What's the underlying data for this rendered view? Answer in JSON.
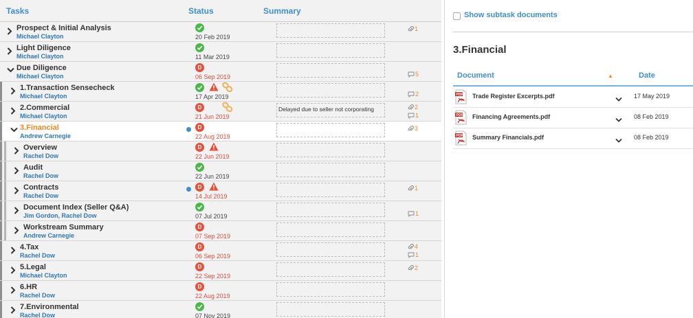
{
  "columns": {
    "tasks": "Tasks",
    "status": "Status",
    "summary": "Summary"
  },
  "colors": {
    "accent": "#3d8fd1",
    "owner": "#2f78b8",
    "orange": "#f08a24",
    "ok": "#4cb84c",
    "due": "#e8503a"
  },
  "tasks": [
    {
      "title": "Prospect & Initial Analysis",
      "owner": "Michael Clayton",
      "status_icon": "check",
      "date": "20 Feb 2019",
      "date_red": false,
      "summary": "",
      "attachments": "1",
      "comments": ""
    },
    {
      "title": "Light Diligence",
      "owner": "Michael Clayton",
      "status_icon": "check",
      "date": "11 Mar 2019",
      "date_red": false,
      "summary": "",
      "attachments": "",
      "comments": ""
    },
    {
      "title": "Due Diligence",
      "owner": "Michael Clayton",
      "status_icon": "due",
      "date": "06 Sep 2019",
      "date_red": true,
      "summary": "",
      "attachments": "",
      "comments": "5",
      "expanded": true
    },
    {
      "title": "1.Transaction Sensecheck",
      "owner": "Michael Clayton",
      "status_icon": "check",
      "warning": true,
      "linked": true,
      "date": "17 Apr 2019",
      "date_red": false,
      "summary": "",
      "attachments": "",
      "comments": "2"
    },
    {
      "title": "2.Commercial",
      "owner": "Michael Clayton",
      "status_icon": "due",
      "linked": true,
      "date": "21 Jun 2019",
      "date_red": true,
      "summary": "Delayed due to seller not corporating",
      "attachments": "2",
      "comments": "1"
    },
    {
      "title": "3.Financial",
      "owner": "Andrew Carnegie",
      "status_icon": "due",
      "date": "22 Aug 2019",
      "date_red": true,
      "summary": "",
      "attachments": "3",
      "comments": "",
      "selected": true,
      "expanded": true,
      "dot": true
    },
    {
      "title": "Overview",
      "owner": "Rachel Dow",
      "status_icon": "due",
      "warning": true,
      "date": "22 Jun 2019",
      "date_red": true,
      "summary": "",
      "attachments": "",
      "comments": ""
    },
    {
      "title": "Audit",
      "owner": "Rachel Dow",
      "status_icon": "check",
      "date": "22 Jun 2019",
      "date_red": false,
      "summary": "",
      "attachments": "",
      "comments": ""
    },
    {
      "title": "Contracts",
      "owner": "Rachel Dow",
      "status_icon": "due",
      "warning": true,
      "date": "14 Jul 2019",
      "date_red": true,
      "summary": "",
      "attachments": "1",
      "comments": "",
      "dot": true
    },
    {
      "title": "Document Index (Seller Q&A)",
      "owner": "Jim Gordon, Rachel Dow",
      "status_icon": "check",
      "date": "07 Jul 2019",
      "date_red": false,
      "summary": "",
      "attachments": "",
      "comments": "1"
    },
    {
      "title": "Workstream Summary",
      "owner": "Andrew Carnegie",
      "status_icon": "due",
      "date": "07 Sep 2019",
      "date_red": true,
      "summary": "",
      "attachments": "",
      "comments": ""
    },
    {
      "title": "4.Tax",
      "owner": "Rachel Dow",
      "status_icon": "due",
      "date": "06 Sep 2019",
      "date_red": true,
      "summary": "",
      "attachments": "4",
      "comments": "1"
    },
    {
      "title": "5.Legal",
      "owner": "Michael Clayton",
      "status_icon": "due",
      "date": "22 Sep 2019",
      "date_red": true,
      "summary": "",
      "attachments": "2",
      "comments": ""
    },
    {
      "title": "6.HR",
      "owner": "Rachel Dow",
      "status_icon": "due",
      "date": "22 Aug 2019",
      "date_red": true,
      "summary": "",
      "attachments": "",
      "comments": ""
    },
    {
      "title": "7.Environmental",
      "owner": "Rachel Dow",
      "status_icon": "check",
      "date": "07 Nov 2019",
      "date_red": false,
      "summary": "",
      "attachments": "",
      "comments": ""
    }
  ],
  "panel": {
    "show_subtask_label": "Show subtask documents",
    "show_subtask_checked": false,
    "title": "3.Financial",
    "doc_header": "Document",
    "date_header": "Date",
    "documents": [
      {
        "name": "Trade Register Excerpts.pdf",
        "date": "17 May 2019"
      },
      {
        "name": "Financing Agreements.pdf",
        "date": "08 Feb 2019"
      },
      {
        "name": "Summary Financials.pdf",
        "date": "08 Feb 2019"
      }
    ]
  }
}
